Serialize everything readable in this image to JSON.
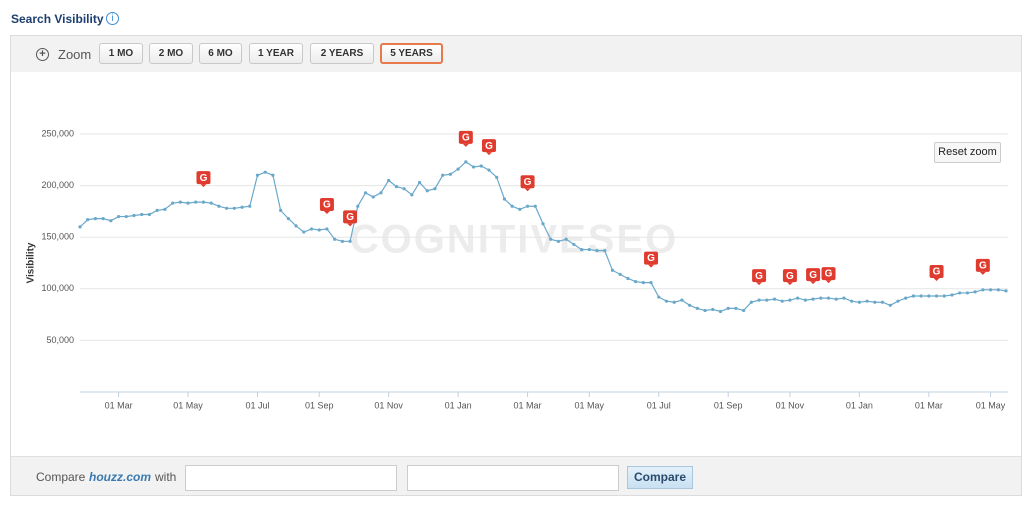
{
  "header": {
    "title": "Search Visibility",
    "info_icon": "i"
  },
  "toolbar": {
    "zoom_label": "Zoom",
    "buttons": [
      "1 MO",
      "2 MO",
      "6 MO",
      "1 YEAR",
      "2 YEARS",
      "5 YEARS"
    ],
    "selected": 5
  },
  "reset_zoom": "Reset zoom",
  "watermark": "COGNITIVESEO",
  "chart_data": {
    "type": "line",
    "ylabel": "Visibility",
    "color": "#6aa8c9",
    "grid": true,
    "ylim": [
      0,
      250000
    ],
    "yticks": [
      {
        "value": 50000,
        "label": "50,000"
      },
      {
        "value": 100000,
        "label": "100,000"
      },
      {
        "value": 150000,
        "label": "150,000"
      },
      {
        "value": 200000,
        "label": "200,000"
      },
      {
        "value": 250000,
        "label": "250,000"
      }
    ],
    "categories": [
      null,
      null,
      null,
      null,
      null,
      "01 Mar",
      null,
      null,
      null,
      null,
      null,
      null,
      null,
      null,
      "01 May",
      null,
      null,
      null,
      null,
      null,
      null,
      null,
      null,
      "01 Jul",
      null,
      null,
      null,
      null,
      null,
      null,
      null,
      "01 Sep",
      null,
      null,
      null,
      null,
      null,
      null,
      null,
      null,
      "01 Nov",
      null,
      null,
      null,
      null,
      null,
      null,
      null,
      null,
      "01 Jan",
      null,
      null,
      null,
      null,
      null,
      null,
      null,
      null,
      "01 Mar",
      null,
      null,
      null,
      null,
      null,
      null,
      null,
      "01 May",
      null,
      null,
      null,
      null,
      null,
      null,
      null,
      null,
      "01 Jul",
      null,
      null,
      null,
      null,
      null,
      null,
      null,
      null,
      "01 Sep",
      null,
      null,
      null,
      null,
      null,
      null,
      null,
      "01 Nov",
      null,
      null,
      null,
      null,
      null,
      null,
      null,
      null,
      "01 Jan",
      null,
      null,
      null,
      null,
      null,
      null,
      null,
      null,
      "01 Mar",
      null,
      null,
      null,
      null,
      null,
      null,
      null,
      "01 May",
      null,
      null
    ],
    "values": [
      160000,
      167000,
      168000,
      168000,
      166000,
      170000,
      170000,
      171000,
      172000,
      172000,
      176000,
      177000,
      183000,
      184000,
      183000,
      184000,
      184000,
      183000,
      180000,
      178000,
      178000,
      179000,
      180000,
      210000,
      213000,
      210000,
      176000,
      168000,
      161000,
      155000,
      158000,
      157000,
      158000,
      148000,
      146000,
      146000,
      180000,
      193000,
      189000,
      193000,
      205000,
      199000,
      197000,
      191000,
      203000,
      195000,
      197000,
      210000,
      211000,
      216000,
      223000,
      218000,
      219000,
      215000,
      208000,
      187000,
      180000,
      177000,
      180000,
      180000,
      163000,
      148000,
      146000,
      148000,
      143000,
      138000,
      138000,
      137000,
      137000,
      118000,
      114000,
      110000,
      107000,
      106000,
      106000,
      92000,
      88000,
      87000,
      89000,
      84000,
      81000,
      79000,
      80000,
      78000,
      81000,
      81000,
      79000,
      87000,
      89000,
      89000,
      90000,
      88000,
      89000,
      91000,
      89000,
      90000,
      91000,
      91000,
      90000,
      91000,
      88000,
      87000,
      88000,
      87000,
      87000,
      84000,
      88000,
      91000,
      93000,
      93000,
      93000,
      93000,
      93000,
      94000,
      96000,
      96000,
      97000,
      99000,
      99000,
      99000,
      98000
    ],
    "annotations": [
      {
        "index": 16,
        "label": "G"
      },
      {
        "index": 32,
        "label": "G"
      },
      {
        "index": 35,
        "label": "G"
      },
      {
        "index": 50,
        "label": "G"
      },
      {
        "index": 53,
        "label": "G"
      },
      {
        "index": 58,
        "label": "G"
      },
      {
        "index": 74,
        "label": "G"
      },
      {
        "index": 88,
        "label": "G"
      },
      {
        "index": 92,
        "label": "G"
      },
      {
        "index": 95,
        "label": "G"
      },
      {
        "index": 97,
        "label": "G"
      },
      {
        "index": 111,
        "label": "G"
      },
      {
        "index": 117,
        "label": "G"
      }
    ]
  },
  "compare": {
    "prefix": "Compare",
    "site": "houzz.com",
    "with": "with",
    "button": "Compare"
  }
}
